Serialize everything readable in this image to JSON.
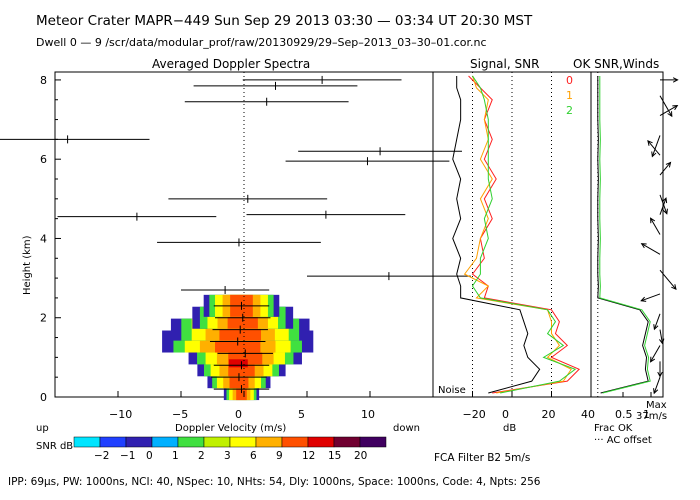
{
  "header": {
    "line1": "Meteor Crater   MAPR−449   Sun Sep 29 2013 03:30 — 03:34 UT 20:30 MST",
    "line2": "Dwell   0 — 9    /scr/data/modular_prof/raw/20130929/29–Sep–2013_03–30–01.cor.nc"
  },
  "footer": {
    "params": "IPP:  69μs,  PW: 1000ns,  NCI:  40,  NSpec: 10, NHts: 54,  Dly: 1000ns,  Space: 1000ns,  Code: 4,  Npts: 256",
    "filter": "FCA Filter B2   5m/s"
  },
  "colors": {
    "beam0": "#ff2020",
    "beam1": "#ffa000",
    "beam2": "#30d030",
    "scale": [
      "#00e5ff",
      "#2040ff",
      "#3020b0",
      "#00b0ff",
      "#40e040",
      "#c0f000",
      "#ffff00",
      "#ffb000",
      "#ff5000",
      "#e00000",
      "#700030",
      "#400060"
    ]
  },
  "chart_data": [
    {
      "type": "scatter",
      "title": "Averaged Doppler Spectra",
      "xlabel": "Doppler Velocity (m/s)",
      "ylabel": "Height (km)",
      "x_ticks": [
        "−10",
        "−5",
        "0",
        "5",
        "10"
      ],
      "y_ticks": [
        "0",
        "2",
        "4",
        "6",
        "8"
      ],
      "up_label": "up",
      "down_label": "down",
      "xlim": [
        -15,
        15
      ],
      "ylim": [
        0,
        8.2
      ],
      "points": [
        {
          "h": 8.0,
          "v": 6.2,
          "err": 6.3
        },
        {
          "h": 7.85,
          "v": 2.5,
          "err": 6.5
        },
        {
          "h": 7.45,
          "v": 1.8,
          "err": 6.5
        },
        {
          "h": 6.5,
          "v": -14.0,
          "err": 6.5
        },
        {
          "h": 6.2,
          "v": 10.8,
          "err": 6.5
        },
        {
          "h": 5.95,
          "v": 9.8,
          "err": 6.5
        },
        {
          "h": 5.0,
          "v": 0.3,
          "err": 6.3
        },
        {
          "h": 4.6,
          "v": 6.5,
          "err": 6.3
        },
        {
          "h": 4.55,
          "v": -8.5,
          "err": 6.3
        },
        {
          "h": 3.9,
          "v": -0.4,
          "err": 6.5
        },
        {
          "h": 3.05,
          "v": 11.5,
          "err": 6.5
        },
        {
          "h": 2.7,
          "v": -1.5,
          "err": 3.5
        }
      ],
      "spectra_rows": [
        {
          "h": 0.2,
          "v": -0.2,
          "w": 1.4
        },
        {
          "h": 0.5,
          "v": -0.4,
          "w": 2.5
        },
        {
          "h": 0.8,
          "v": -0.2,
          "w": 3.5
        },
        {
          "h": 1.1,
          "v": 0.1,
          "w": 4.5
        },
        {
          "h": 1.4,
          "v": -0.5,
          "w": 6.0
        },
        {
          "h": 1.7,
          "v": -0.3,
          "w": 5.5
        },
        {
          "h": 2.0,
          "v": -0.1,
          "w": 4.0
        },
        {
          "h": 2.3,
          "v": -0.2,
          "w": 3.0
        }
      ]
    },
    {
      "type": "line",
      "title": "Signal, SNR",
      "xlabel": "dB",
      "x_ticks": [
        "−20",
        "0",
        "20",
        "40"
      ],
      "noise_label": "Noise",
      "beam_labels": [
        "0",
        "1",
        "2"
      ],
      "xlim": [
        -40,
        40
      ],
      "heights": [
        0.1,
        0.4,
        0.7,
        1.0,
        1.3,
        1.6,
        1.9,
        2.2,
        2.5,
        2.8,
        3.1,
        3.5,
        4.0,
        4.5,
        5.0,
        5.5,
        6.0,
        6.5,
        7.0,
        7.5,
        7.8,
        8.1
      ],
      "series": [
        {
          "name": "beam0",
          "values": [
            -10,
            28,
            34,
            20,
            28,
            22,
            24,
            20,
            -14,
            -12,
            -20,
            -14,
            -16,
            -10,
            -14,
            -8,
            -14,
            -10,
            -14,
            -10,
            -16,
            -22
          ]
        },
        {
          "name": "beam1",
          "values": [
            -8,
            26,
            30,
            18,
            24,
            20,
            20,
            18,
            -18,
            -12,
            -24,
            -18,
            -16,
            -12,
            -16,
            -10,
            -16,
            -12,
            -14,
            -12,
            -18,
            -20
          ]
        },
        {
          "name": "beam2",
          "values": [
            -6,
            24,
            32,
            16,
            26,
            18,
            22,
            18,
            -16,
            -20,
            -16,
            -16,
            -12,
            -14,
            -10,
            -12,
            -12,
            -12,
            -12,
            -14,
            -16,
            -20
          ]
        },
        {
          "name": "noise",
          "values": [
            -12,
            10,
            14,
            8,
            6,
            8,
            6,
            4,
            -26,
            -26,
            -28,
            -26,
            -30,
            -26,
            -28,
            -26,
            -30,
            -28,
            -26,
            -26,
            -28,
            -28
          ]
        }
      ]
    },
    {
      "type": "line",
      "title": "OK SNR,Winds",
      "xlabel": "Frac OK",
      "x_ticks": [
        "0.5",
        "1"
      ],
      "legend_note": "··· AC offset",
      "max_label": "Max",
      "max_value": "37m/s",
      "heights": [
        0.1,
        0.4,
        0.7,
        1.0,
        1.3,
        1.6,
        1.9,
        2.2,
        2.5,
        2.8,
        3.1,
        3.5,
        4.0,
        4.5,
        5.0,
        5.5,
        6.0,
        6.5,
        7.0,
        7.5,
        7.8,
        8.1
      ],
      "series": [
        {
          "name": "frac_ok",
          "values": [
            0.1,
            0.95,
            0.9,
            0.92,
            0.85,
            0.9,
            0.95,
            0.8,
            0.05,
            0.06,
            0.05,
            0.05,
            0.06,
            0.05,
            0.05,
            0.06,
            0.05,
            0.06,
            0.05,
            0.05,
            0.05,
            0.05
          ]
        }
      ],
      "winds": [
        {
          "h": 0.5,
          "dir": 200,
          "spd": 15
        },
        {
          "h": 0.9,
          "dir": 180,
          "spd": 12
        },
        {
          "h": 1.3,
          "dir": 210,
          "spd": 18
        },
        {
          "h": 1.7,
          "dir": 170,
          "spd": 10
        },
        {
          "h": 2.1,
          "dir": 200,
          "spd": 14
        },
        {
          "h": 2.6,
          "dir": 250,
          "spd": 20
        },
        {
          "h": 3.2,
          "dir": 140,
          "spd": 28
        },
        {
          "h": 3.6,
          "dir": 300,
          "spd": 22
        },
        {
          "h": 4.1,
          "dir": 330,
          "spd": 18
        },
        {
          "h": 4.6,
          "dir": 20,
          "spd": 16
        },
        {
          "h": 5.1,
          "dir": 160,
          "spd": 20
        },
        {
          "h": 5.6,
          "dir": 40,
          "spd": 14
        },
        {
          "h": 6.1,
          "dir": 320,
          "spd": 18
        },
        {
          "h": 6.6,
          "dir": 200,
          "spd": 24
        },
        {
          "h": 7.1,
          "dir": 60,
          "spd": 20
        },
        {
          "h": 7.6,
          "dir": 150,
          "spd": 26
        },
        {
          "h": 8.0,
          "dir": 90,
          "spd": 16
        }
      ]
    },
    {
      "type": "heatmap",
      "title": "SNR dB",
      "labels": [
        "−2",
        "−1",
        "0",
        "1",
        "2",
        "3",
        "6",
        "9",
        "12",
        "15",
        "20"
      ]
    }
  ]
}
